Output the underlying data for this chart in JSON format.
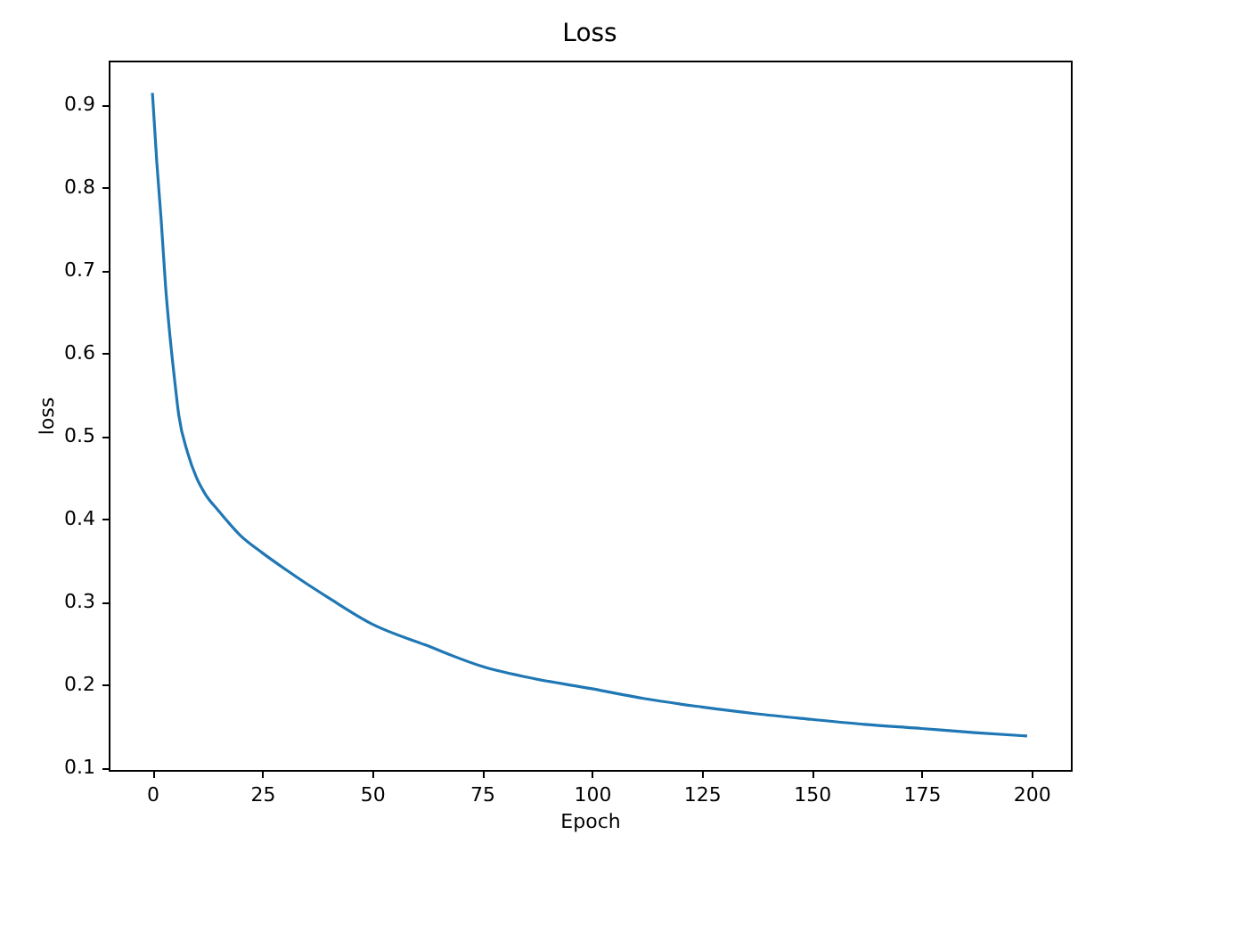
{
  "chart_data": {
    "type": "line",
    "title": "Loss",
    "xlabel": "Epoch",
    "ylabel": "loss",
    "x": [
      0,
      1,
      2,
      3,
      4,
      5,
      6,
      8,
      10,
      12,
      15,
      20,
      25,
      30,
      35,
      40,
      50,
      62,
      75,
      87,
      100,
      112,
      125,
      137,
      150,
      162,
      175,
      187,
      199
    ],
    "series": [
      {
        "color": "#1f77b4",
        "values": [
          0.914,
          0.83,
          0.76,
          0.68,
          0.62,
          0.57,
          0.525,
          0.48,
          0.45,
          0.43,
          0.41,
          0.38,
          0.359,
          0.34,
          0.322,
          0.305,
          0.273,
          0.248,
          0.222,
          0.207,
          0.195,
          0.183,
          0.173,
          0.165,
          0.158,
          0.152,
          0.147,
          0.142,
          0.138
        ]
      }
    ],
    "xlim": [
      -9.95,
      208.95
    ],
    "ylim": [
      0.097,
      0.953
    ],
    "xticks": [
      0,
      25,
      50,
      75,
      100,
      125,
      150,
      175,
      200
    ],
    "yticks": [
      0.1,
      0.2,
      0.3,
      0.4,
      0.5,
      0.6,
      0.7,
      0.8,
      0.9
    ],
    "grid": false
  }
}
